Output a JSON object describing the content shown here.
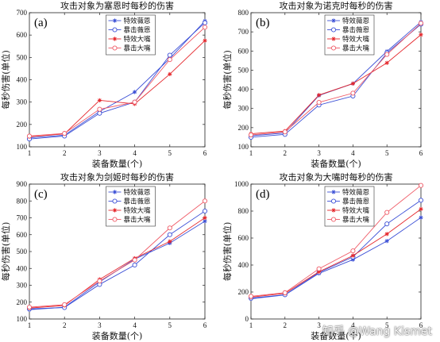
{
  "colors": {
    "blue": "#3b4fd6",
    "red": "#e5262b",
    "pink": "#ef5a66",
    "axis": "#222222"
  },
  "watermark": "知乎 @Wang Kismet",
  "chart_data": [
    {
      "type": "line",
      "panel_label": "(a)",
      "title": "攻击对象为塞恩时每秒的伤害",
      "xlabel": "装备数量(个)",
      "ylabel": "每秒伤害(单位)",
      "x": [
        1,
        2,
        3,
        4,
        5,
        6
      ],
      "xlim": [
        1,
        6
      ],
      "ylim": [
        100,
        700
      ],
      "yticks": [
        100,
        200,
        300,
        400,
        500,
        600,
        700
      ],
      "legend_position": "top-center",
      "grid": false,
      "series": [
        {
          "name": "特效薇恩",
          "values": [
            140,
            152,
            258,
            345,
            495,
            663
          ],
          "color": "#3b4fd6",
          "marker": "star"
        },
        {
          "name": "暴击薇恩",
          "values": [
            135,
            148,
            250,
            300,
            510,
            655
          ],
          "color": "#3b4fd6",
          "marker": "circle"
        },
        {
          "name": "特效大嘴",
          "values": [
            145,
            158,
            308,
            292,
            425,
            575
          ],
          "color": "#e5262b",
          "marker": "star"
        },
        {
          "name": "暴击大嘴",
          "values": [
            148,
            160,
            268,
            300,
            490,
            635
          ],
          "color": "#ef5a66",
          "marker": "circle"
        }
      ]
    },
    {
      "type": "line",
      "panel_label": "(b)",
      "title": "攻击对象为诺克时每秒的伤害",
      "xlabel": "装备数量(个)",
      "ylabel": "每秒伤害(单位)",
      "x": [
        1,
        2,
        3,
        4,
        5,
        6
      ],
      "xlim": [
        1,
        6
      ],
      "ylim": [
        100,
        800
      ],
      "yticks": [
        100,
        200,
        300,
        400,
        500,
        600,
        700,
        800
      ],
      "legend_position": "top-center",
      "grid": false,
      "series": [
        {
          "name": "特效薇恩",
          "values": [
            158,
            172,
            368,
            430,
            598,
            752
          ],
          "color": "#3b4fd6",
          "marker": "star"
        },
        {
          "name": "暴击薇恩",
          "values": [
            150,
            165,
            318,
            365,
            590,
            740
          ],
          "color": "#3b4fd6",
          "marker": "circle"
        },
        {
          "name": "特效大嘴",
          "values": [
            168,
            182,
            370,
            430,
            538,
            685
          ],
          "color": "#e5262b",
          "marker": "star"
        },
        {
          "name": "暴击大嘴",
          "values": [
            162,
            178,
            332,
            380,
            582,
            745
          ],
          "color": "#ef5a66",
          "marker": "circle"
        }
      ]
    },
    {
      "type": "line",
      "panel_label": "(c)",
      "title": "攻击对象为剑姬时每秒的伤害",
      "xlabel": "装备数量(个)",
      "ylabel": "每秒伤害(单位)",
      "x": [
        1,
        2,
        3,
        4,
        5,
        6
      ],
      "xlim": [
        1,
        6
      ],
      "ylim": [
        100,
        900
      ],
      "yticks": [
        100,
        200,
        300,
        400,
        500,
        600,
        700,
        800,
        900
      ],
      "legend_position": "top-center",
      "grid": false,
      "series": [
        {
          "name": "特效薇恩",
          "values": [
            155,
            170,
            320,
            455,
            550,
            680
          ],
          "color": "#3b4fd6",
          "marker": "star"
        },
        {
          "name": "暴击薇恩",
          "values": [
            160,
            168,
            305,
            420,
            600,
            740
          ],
          "color": "#3b4fd6",
          "marker": "circle"
        },
        {
          "name": "特效大嘴",
          "values": [
            165,
            180,
            335,
            460,
            560,
            700
          ],
          "color": "#e5262b",
          "marker": "star"
        },
        {
          "name": "暴击大嘴",
          "values": [
            170,
            185,
            325,
            450,
            640,
            800
          ],
          "color": "#ef5a66",
          "marker": "circle"
        }
      ]
    },
    {
      "type": "line",
      "panel_label": "(d)",
      "title": "攻击对象为大嘴时每秒的伤害",
      "xlabel": "装备数量(个)",
      "ylabel": "每秒伤害(单位)",
      "x": [
        1,
        2,
        3,
        4,
        5,
        6
      ],
      "xlim": [
        1,
        6
      ],
      "ylim": [
        0,
        1000
      ],
      "yticks": [
        0,
        200,
        400,
        600,
        800,
        1000
      ],
      "legend_position": "top-center",
      "grid": false,
      "series": [
        {
          "name": "特效薇恩",
          "values": [
            150,
            178,
            338,
            440,
            578,
            752
          ],
          "color": "#3b4fd6",
          "marker": "star"
        },
        {
          "name": "暴击薇恩",
          "values": [
            155,
            180,
            345,
            460,
            705,
            880
          ],
          "color": "#3b4fd6",
          "marker": "circle"
        },
        {
          "name": "特效大嘴",
          "values": [
            162,
            190,
            350,
            470,
            630,
            815
          ],
          "color": "#e5262b",
          "marker": "star"
        },
        {
          "name": "暴击大嘴",
          "values": [
            168,
            195,
            372,
            505,
            790,
            990
          ],
          "color": "#ef5a66",
          "marker": "circle"
        }
      ]
    }
  ]
}
